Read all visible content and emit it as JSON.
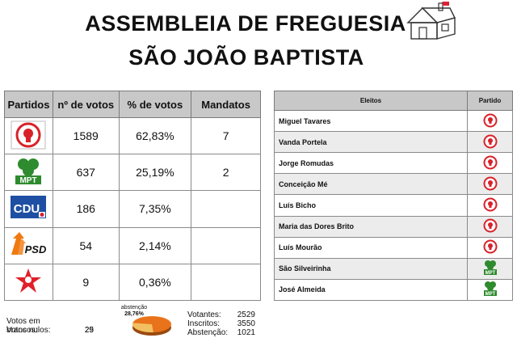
{
  "header": {
    "line1": "ASSEMBLEIA DE FREGUESIA",
    "line2": "SÃO JOÃO BAPTISTA"
  },
  "results": {
    "columns": [
      "Partidos",
      "nº de votos",
      "% de votos",
      "Mandatos"
    ],
    "rows": [
      {
        "party": "PS",
        "logo": "ps-fist-rose-icon",
        "votes": "1589",
        "percent": "62,83%",
        "seats": "7"
      },
      {
        "party": "MPT",
        "logo": "mpt-clover-icon",
        "votes": "637",
        "percent": "25,19%",
        "seats": "2"
      },
      {
        "party": "CDU",
        "logo": "cdu-logo-icon",
        "votes": "186",
        "percent": "7,35%",
        "seats": ""
      },
      {
        "party": "PSD",
        "logo": "psd-arrows-icon",
        "votes": "54",
        "percent": "2,14%",
        "seats": ""
      },
      {
        "party": "BE",
        "logo": "be-star-icon",
        "votes": "9",
        "percent": "0,36%",
        "seats": ""
      }
    ]
  },
  "elected": {
    "columns": [
      "Eleitos",
      "Partido"
    ],
    "rows": [
      {
        "name": "Miguel Tavares",
        "party": "PS"
      },
      {
        "name": "Vanda Portela",
        "party": "PS"
      },
      {
        "name": "Jorge Romudas",
        "party": "PS"
      },
      {
        "name": "Conceição Mé",
        "party": "PS"
      },
      {
        "name": "Luís Bicho",
        "party": "PS"
      },
      {
        "name": "Maria das Dores Brito",
        "party": "PS"
      },
      {
        "name": "Luís Mourão",
        "party": "PS"
      },
      {
        "name": "São Silveirinha",
        "party": "MPT"
      },
      {
        "name": "José Almeida",
        "party": "MPT"
      }
    ]
  },
  "footer": {
    "blank_label": "Votos em brancos:",
    "blank_value": "29",
    "null_label": "Votos nulos:",
    "null_value": "25",
    "abstention_label": "abstenção",
    "abstention_percent": "28,76%",
    "abstention_fraction": 0.2876,
    "voters_label": "Votantes:",
    "voters_value": "2529",
    "registered_label": "Inscritos:",
    "registered_value": "3550",
    "abstention_count_label": "Abstenção:",
    "abstention_count_value": "1021"
  },
  "colors": {
    "ps": "#d8222a",
    "mpt": "#2e8b2e",
    "cdu_blue": "#1f4fa3",
    "psd": "#f07a10",
    "be": "#e0202a",
    "pie_main": "#e8731a",
    "pie_abst": "#f2c060",
    "header_bg": "#c8c8c8"
  }
}
